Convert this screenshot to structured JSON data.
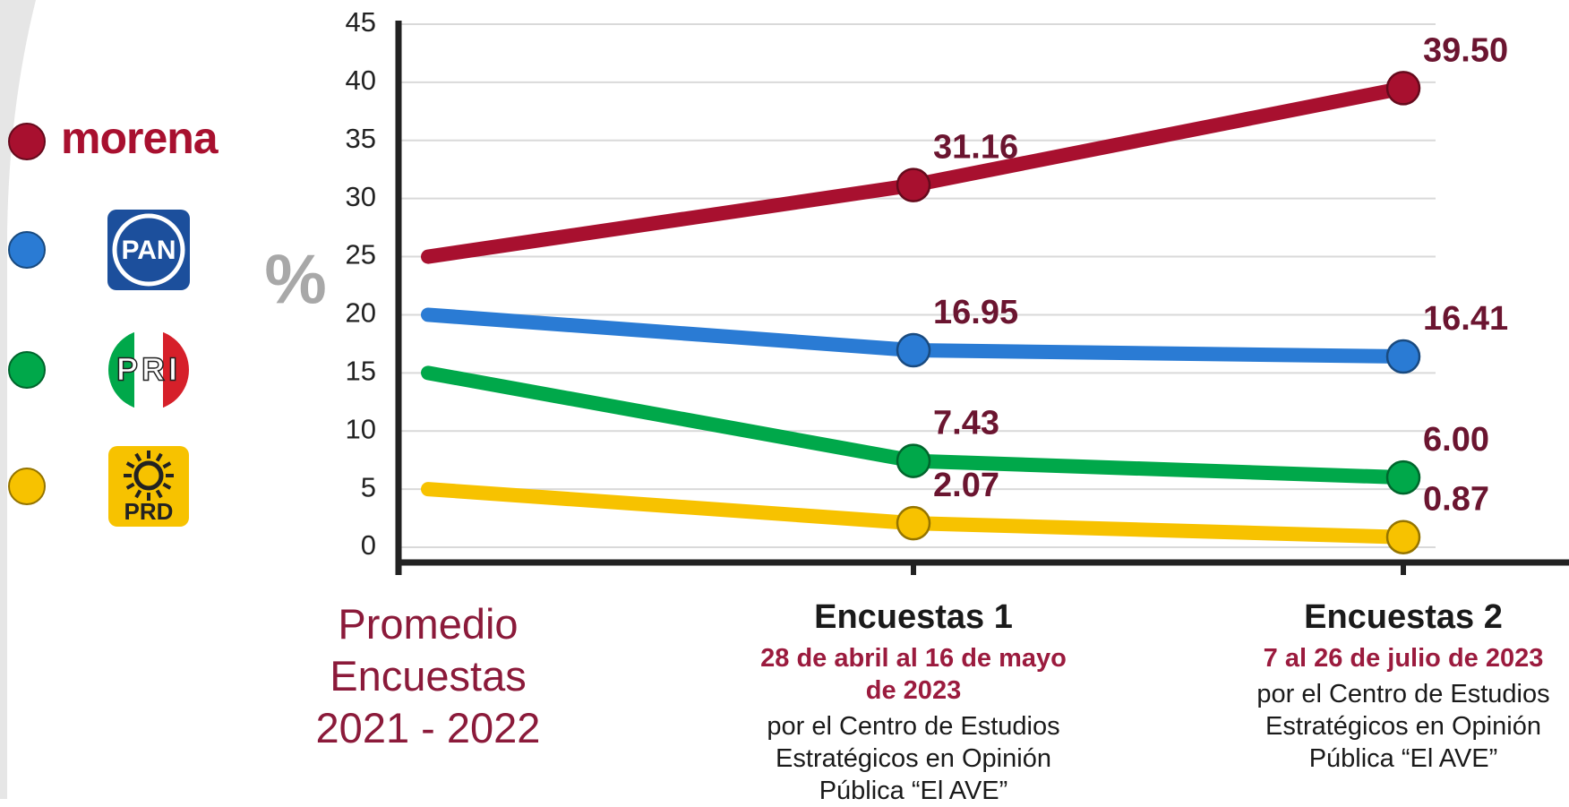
{
  "chart_data": {
    "type": "line",
    "y_axis_label": "%",
    "categories": [
      "Promedio Encuestas 2021 - 2022",
      "Encuestas 1",
      "Encuestas 2"
    ],
    "category_details": [
      null,
      {
        "date": "28 de abril al 16 de mayo de 2023",
        "source": "por el Centro de Estudios Estratégicos en Opinión Pública “El AVE”"
      },
      {
        "date": "7 al 26 de julio de 2023",
        "source": "por el Centro de Estudios Estratégicos en Opinión Pública “El AVE”"
      }
    ],
    "series": [
      {
        "name": "morena",
        "color": "#a8102f",
        "values": [
          25,
          31.16,
          39.5
        ],
        "value_labels": [
          null,
          "31.16",
          "39.50"
        ]
      },
      {
        "name": "PAN",
        "color": "#2a7bd4",
        "values": [
          20,
          16.95,
          16.41
        ],
        "value_labels": [
          null,
          "16.95",
          "16.41"
        ]
      },
      {
        "name": "PRI",
        "color": "#00a84a",
        "values": [
          15,
          7.43,
          6
        ],
        "value_labels": [
          null,
          "7.43",
          "6.00"
        ]
      },
      {
        "name": "PRD",
        "color": "#f7c200",
        "values": [
          5,
          2.07,
          0.87
        ],
        "value_labels": [
          null,
          "2.07",
          "0.87"
        ]
      }
    ],
    "ylim": [
      0,
      45
    ],
    "yticks": [
      0,
      5,
      10,
      15,
      20,
      25,
      30,
      35,
      40,
      45
    ],
    "grid": true
  }
}
